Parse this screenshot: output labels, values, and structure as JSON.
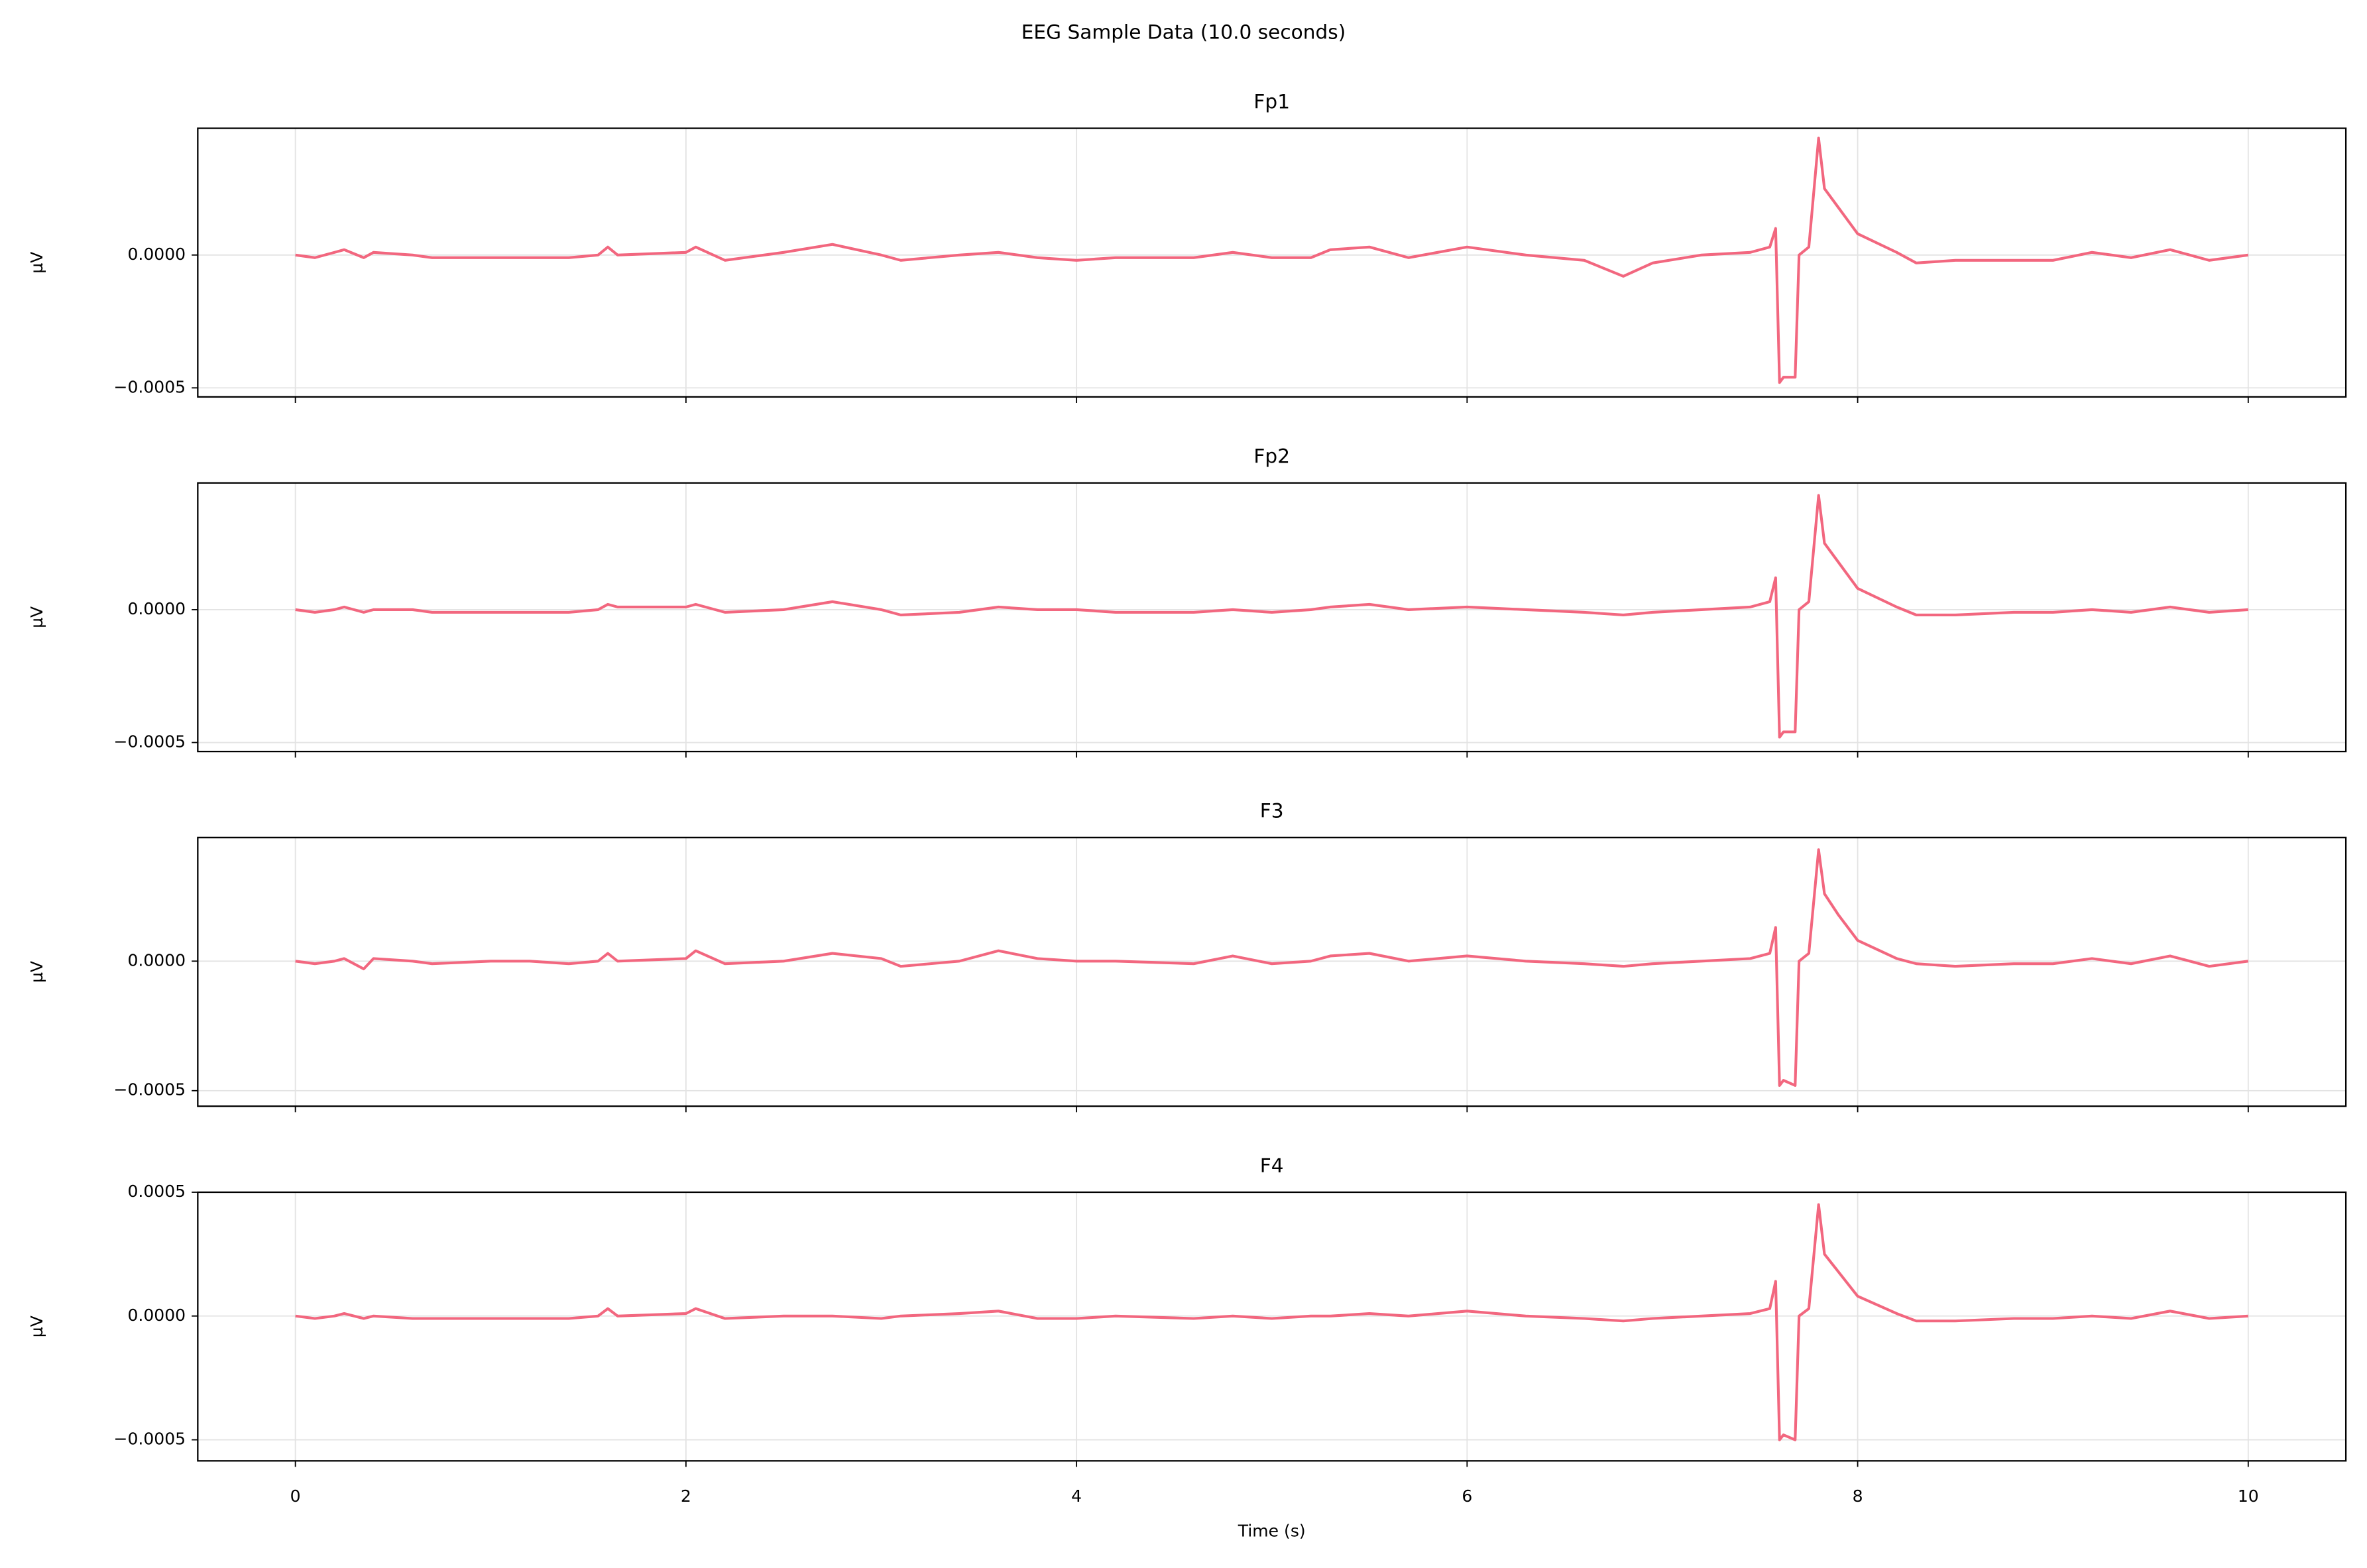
{
  "title": "EEG Sample Data (10.0 seconds)",
  "chart_data": [
    {
      "type": "line",
      "title": "Fp1",
      "ylabel": "µV",
      "xlim": [
        -0.5,
        10.5
      ],
      "xticks": [
        0,
        2,
        4,
        6,
        8,
        10
      ],
      "ylim": [
        -0.000534,
        0.000477
      ],
      "yticks": [
        {
          "value": -0.0005,
          "label": "−0.0005"
        },
        {
          "value": 0,
          "label": "0.0000"
        }
      ],
      "grid": true,
      "x": [
        0,
        0.1,
        0.2,
        0.25,
        0.35,
        0.4,
        0.6,
        0.7,
        1.0,
        1.2,
        1.4,
        1.55,
        1.6,
        1.65,
        2.0,
        2.05,
        2.2,
        2.5,
        2.75,
        3.0,
        3.1,
        3.4,
        3.6,
        3.8,
        4.0,
        4.2,
        4.6,
        4.8,
        5.0,
        5.2,
        5.3,
        5.5,
        5.7,
        6.0,
        6.3,
        6.6,
        6.8,
        6.95,
        7.2,
        7.45,
        7.55,
        7.58,
        7.6,
        7.62,
        7.68,
        7.7,
        7.75,
        7.8,
        7.83,
        7.9,
        8.0,
        8.2,
        8.3,
        8.5,
        8.8,
        9.0,
        9.2,
        9.4,
        9.6,
        9.8,
        10
      ],
      "series": [
        {
          "color": "#f2677f",
          "values": [
            0,
            -1e-05,
            1e-05,
            2e-05,
            -1e-05,
            1e-05,
            0,
            -1e-05,
            -1e-05,
            -1e-05,
            -1e-05,
            0,
            3e-05,
            0,
            1e-05,
            3e-05,
            -2e-05,
            1e-05,
            4e-05,
            0,
            -2e-05,
            0,
            1e-05,
            -1e-05,
            -2e-05,
            -1e-05,
            -1e-05,
            1e-05,
            -1e-05,
            -1e-05,
            2e-05,
            3e-05,
            -1e-05,
            3e-05,
            0,
            -2e-05,
            -8e-05,
            -3e-05,
            0,
            1e-05,
            3e-05,
            0.0001,
            -0.00048,
            -0.00046,
            -0.00046,
            0,
            3e-05,
            0.00044,
            0.00025,
            0.00018,
            8e-05,
            1e-05,
            -3e-05,
            -2e-05,
            -2e-05,
            -2e-05,
            1e-05,
            -1e-05,
            2e-05,
            -2e-05,
            0
          ]
        }
      ]
    },
    {
      "type": "line",
      "title": "Fp2",
      "ylabel": "µV",
      "xlim": [
        -0.5,
        10.5
      ],
      "xticks": [
        0,
        2,
        4,
        6,
        8,
        10
      ],
      "ylim": [
        -0.000534,
        0.000477
      ],
      "yticks": [
        {
          "value": -0.0005,
          "label": "−0.0005"
        },
        {
          "value": 0,
          "label": "0.0000"
        }
      ],
      "grid": true,
      "x": [
        0,
        0.1,
        0.2,
        0.25,
        0.35,
        0.4,
        0.6,
        0.7,
        1.0,
        1.2,
        1.4,
        1.55,
        1.6,
        1.65,
        2.0,
        2.05,
        2.2,
        2.5,
        2.75,
        3.0,
        3.1,
        3.4,
        3.6,
        3.8,
        4.0,
        4.2,
        4.6,
        4.8,
        5.0,
        5.2,
        5.3,
        5.5,
        5.7,
        6.0,
        6.3,
        6.6,
        6.8,
        6.95,
        7.2,
        7.45,
        7.55,
        7.58,
        7.6,
        7.62,
        7.68,
        7.7,
        7.75,
        7.8,
        7.83,
        7.9,
        8.0,
        8.2,
        8.3,
        8.5,
        8.8,
        9.0,
        9.2,
        9.4,
        9.6,
        9.8,
        10
      ],
      "series": [
        {
          "color": "#f2677f",
          "values": [
            0,
            -1e-05,
            0,
            1e-05,
            -1e-05,
            0,
            0,
            -1e-05,
            -1e-05,
            -1e-05,
            -1e-05,
            0,
            2e-05,
            1e-05,
            1e-05,
            2e-05,
            -1e-05,
            0,
            3e-05,
            0,
            -2e-05,
            -1e-05,
            1e-05,
            0,
            0,
            -1e-05,
            -1e-05,
            0,
            -1e-05,
            0,
            1e-05,
            2e-05,
            0,
            1e-05,
            0,
            -1e-05,
            -2e-05,
            -1e-05,
            0,
            1e-05,
            3e-05,
            0.00012,
            -0.00048,
            -0.00046,
            -0.00046,
            0,
            3e-05,
            0.00043,
            0.00025,
            0.00018,
            8e-05,
            1e-05,
            -2e-05,
            -2e-05,
            -1e-05,
            -1e-05,
            0,
            -1e-05,
            1e-05,
            -1e-05,
            0
          ]
        }
      ]
    },
    {
      "type": "line",
      "title": "F3",
      "ylabel": "µV",
      "xlim": [
        -0.5,
        10.5
      ],
      "xticks": [
        0,
        2,
        4,
        6,
        8,
        10
      ],
      "ylim": [
        -0.00056,
        0.000477
      ],
      "yticks": [
        {
          "value": -0.0005,
          "label": "−0.0005"
        },
        {
          "value": 0,
          "label": "0.0000"
        }
      ],
      "grid": true,
      "x": [
        0,
        0.1,
        0.2,
        0.25,
        0.35,
        0.4,
        0.6,
        0.7,
        1.0,
        1.2,
        1.4,
        1.55,
        1.6,
        1.65,
        2.0,
        2.05,
        2.2,
        2.5,
        2.75,
        3.0,
        3.1,
        3.4,
        3.6,
        3.8,
        4.0,
        4.2,
        4.6,
        4.8,
        5.0,
        5.2,
        5.3,
        5.5,
        5.7,
        6.0,
        6.3,
        6.6,
        6.8,
        6.95,
        7.2,
        7.45,
        7.55,
        7.58,
        7.6,
        7.62,
        7.68,
        7.7,
        7.75,
        7.8,
        7.83,
        7.9,
        8.0,
        8.2,
        8.3,
        8.5,
        8.8,
        9.0,
        9.2,
        9.4,
        9.6,
        9.8,
        10
      ],
      "series": [
        {
          "color": "#f2677f",
          "values": [
            0,
            -1e-05,
            0,
            1e-05,
            -3e-05,
            1e-05,
            0,
            -1e-05,
            0,
            0,
            -1e-05,
            0,
            3e-05,
            0,
            1e-05,
            4e-05,
            -1e-05,
            0,
            3e-05,
            1e-05,
            -2e-05,
            0,
            4e-05,
            1e-05,
            0,
            0,
            -1e-05,
            2e-05,
            -1e-05,
            0,
            2e-05,
            3e-05,
            0,
            2e-05,
            0,
            -1e-05,
            -2e-05,
            -1e-05,
            0,
            1e-05,
            3e-05,
            0.00013,
            -0.00048,
            -0.00046,
            -0.00048,
            0,
            3e-05,
            0.00043,
            0.00026,
            0.00018,
            8e-05,
            1e-05,
            -1e-05,
            -2e-05,
            -1e-05,
            -1e-05,
            1e-05,
            -1e-05,
            2e-05,
            -2e-05,
            0
          ]
        }
      ]
    },
    {
      "type": "line",
      "title": "F4",
      "ylabel": "µV",
      "xlabel": "Time (s)",
      "xlim": [
        -0.5,
        10.5
      ],
      "xticks": [
        0,
        2,
        4,
        6,
        8,
        10
      ],
      "ylim": [
        -0.000585,
        0.0005
      ],
      "yticks": [
        {
          "value": -0.0005,
          "label": "−0.0005"
        },
        {
          "value": 0,
          "label": "0.0000"
        },
        {
          "value": 0.0005,
          "label": "0.0005"
        }
      ],
      "grid": true,
      "x": [
        0,
        0.1,
        0.2,
        0.25,
        0.35,
        0.4,
        0.6,
        0.7,
        1.0,
        1.2,
        1.4,
        1.55,
        1.6,
        1.65,
        2.0,
        2.05,
        2.2,
        2.5,
        2.75,
        3.0,
        3.1,
        3.4,
        3.6,
        3.8,
        4.0,
        4.2,
        4.6,
        4.8,
        5.0,
        5.2,
        5.3,
        5.5,
        5.7,
        6.0,
        6.3,
        6.6,
        6.8,
        6.95,
        7.2,
        7.45,
        7.55,
        7.58,
        7.6,
        7.62,
        7.68,
        7.7,
        7.75,
        7.8,
        7.83,
        7.9,
        8.0,
        8.2,
        8.3,
        8.5,
        8.8,
        9.0,
        9.2,
        9.4,
        9.6,
        9.8,
        10
      ],
      "series": [
        {
          "color": "#f2677f",
          "values": [
            0,
            -1e-05,
            0,
            1e-05,
            -1e-05,
            0,
            -1e-05,
            -1e-05,
            -1e-05,
            -1e-05,
            -1e-05,
            0,
            3e-05,
            0,
            1e-05,
            3e-05,
            -1e-05,
            0,
            0,
            -1e-05,
            0,
            1e-05,
            2e-05,
            -1e-05,
            -1e-05,
            0,
            -1e-05,
            0,
            -1e-05,
            0,
            0,
            1e-05,
            0,
            2e-05,
            0,
            -1e-05,
            -2e-05,
            -1e-05,
            0,
            1e-05,
            3e-05,
            0.00014,
            -0.0005,
            -0.00048,
            -0.0005,
            0,
            3e-05,
            0.00045,
            0.00025,
            0.00018,
            8e-05,
            1e-05,
            -2e-05,
            -2e-05,
            -1e-05,
            -1e-05,
            0,
            -1e-05,
            2e-05,
            -1e-05,
            0
          ]
        }
      ]
    }
  ]
}
